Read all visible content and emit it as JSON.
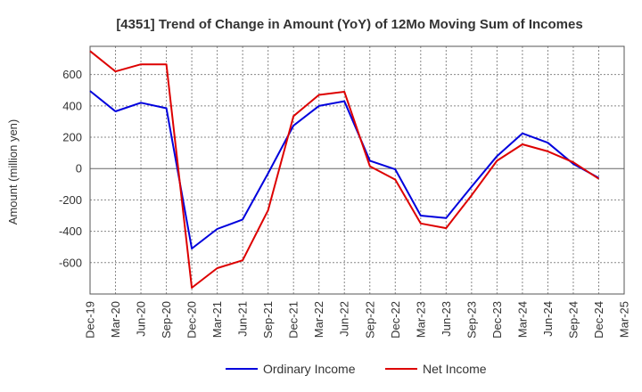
{
  "chart_data": {
    "type": "line",
    "title": "[4351]  Trend of Change in Amount (YoY) of 12Mo Moving Sum of Incomes",
    "xlabel": "",
    "ylabel": "Amount (million yen)",
    "ylim": [
      -800,
      780
    ],
    "yticks": [
      -600,
      -400,
      -200,
      0,
      200,
      400,
      600
    ],
    "grid": true,
    "legend_position": "bottom",
    "x": [
      "Dec-19",
      "Mar-20",
      "Jun-20",
      "Sep-20",
      "Dec-20",
      "Mar-21",
      "Jun-21",
      "Sep-21",
      "Dec-21",
      "Mar-22",
      "Jun-22",
      "Sep-22",
      "Dec-22",
      "Mar-23",
      "Jun-23",
      "Sep-23",
      "Dec-23",
      "Mar-24",
      "Jun-24",
      "Sep-24",
      "Dec-24",
      "Mar-25"
    ],
    "series": [
      {
        "name": "Ordinary Income",
        "color": "#0000dd",
        "values": [
          495,
          365,
          420,
          385,
          -510,
          -385,
          -325,
          -30,
          275,
          400,
          430,
          50,
          -5,
          -300,
          -315,
          -115,
          80,
          225,
          165,
          30,
          -60,
          null
        ]
      },
      {
        "name": "Net Income",
        "color": "#dd0000",
        "values": [
          750,
          620,
          665,
          665,
          -760,
          -635,
          -585,
          -265,
          335,
          470,
          490,
          15,
          -70,
          -350,
          -380,
          -170,
          50,
          155,
          110,
          40,
          -65,
          null
        ]
      }
    ]
  }
}
